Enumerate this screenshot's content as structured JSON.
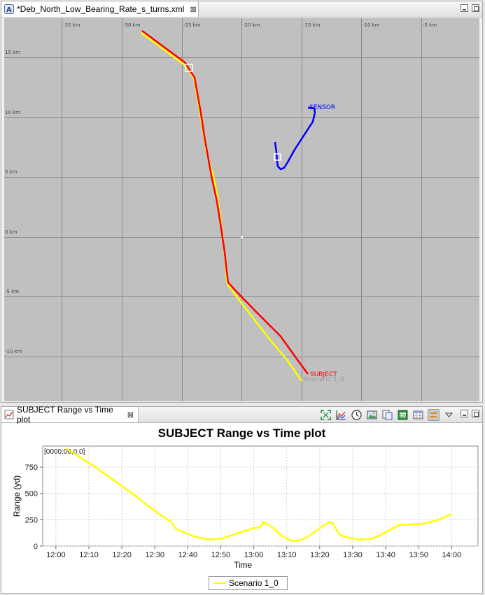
{
  "editor": {
    "tab_title": "*Deb_North_Low_Bearing_Rate_s_turns.xml",
    "close_glyph": "⊠",
    "x_ticks": [
      "-35 km",
      "-30 km",
      "-25 km",
      "-20 km",
      "-15 km",
      "-10 km",
      "-5 km"
    ],
    "y_ticks": [
      "15 km",
      "10 km",
      "5 km",
      "0 km",
      "-5 km",
      "-10 km"
    ],
    "track_labels": {
      "subject": "SUBJECT",
      "sensor": "SENSOR",
      "scenario": "Scenario 1_0"
    },
    "colors": {
      "subject": "#ff0000",
      "sensor": "#0000ff",
      "scenario": "#ffff00",
      "map_bg": "#c0c0c0"
    }
  },
  "plot_view": {
    "tab_title": "SUBJECT Range vs Time plot",
    "close_glyph": "⊠",
    "toolbar_icons": [
      "fit-to-window-icon",
      "chart-lines-icon",
      "clock-icon",
      "image-icon",
      "copy-icon",
      "export-data-icon",
      "table-icon",
      "sync-icon",
      "view-menu-icon"
    ]
  },
  "chart_data": {
    "type": "line",
    "title": "SUBJECT Range vs Time plot",
    "xlabel": "Time",
    "ylabel": "Range (yd)",
    "annotation": "[0000:00,0.0]",
    "x_ticks": [
      "12:00",
      "12:10",
      "12:20",
      "12:30",
      "12:40",
      "12:50",
      "13:00",
      "13:10",
      "13:20",
      "13:30",
      "13:40",
      "13:50",
      "14:00"
    ],
    "y_ticks": [
      "0",
      "250",
      "500",
      "750"
    ],
    "ylim": [
      0,
      950
    ],
    "xlim_minutes": [
      -4,
      128
    ],
    "grid": true,
    "legend_position": "bottom",
    "series": [
      {
        "name": "Scenario 1_0",
        "color": "#ffff00",
        "x_minutes": [
          3,
          8,
          12,
          16,
          20,
          24,
          28,
          32,
          35,
          36,
          38,
          42,
          46,
          50,
          54,
          58,
          60,
          62,
          63,
          64,
          66,
          68,
          70,
          72,
          74,
          76,
          80,
          83,
          84,
          85,
          86,
          88,
          92,
          96,
          100,
          104,
          108,
          112,
          116,
          120
        ],
        "values": [
          930,
          830,
          750,
          660,
          570,
          480,
          380,
          290,
          230,
          175,
          140,
          90,
          62,
          68,
          110,
          150,
          170,
          180,
          230,
          210,
          170,
          110,
          70,
          45,
          55,
          80,
          170,
          230,
          215,
          160,
          110,
          85,
          60,
          70,
          130,
          200,
          205,
          215,
          250,
          305
        ]
      }
    ]
  }
}
